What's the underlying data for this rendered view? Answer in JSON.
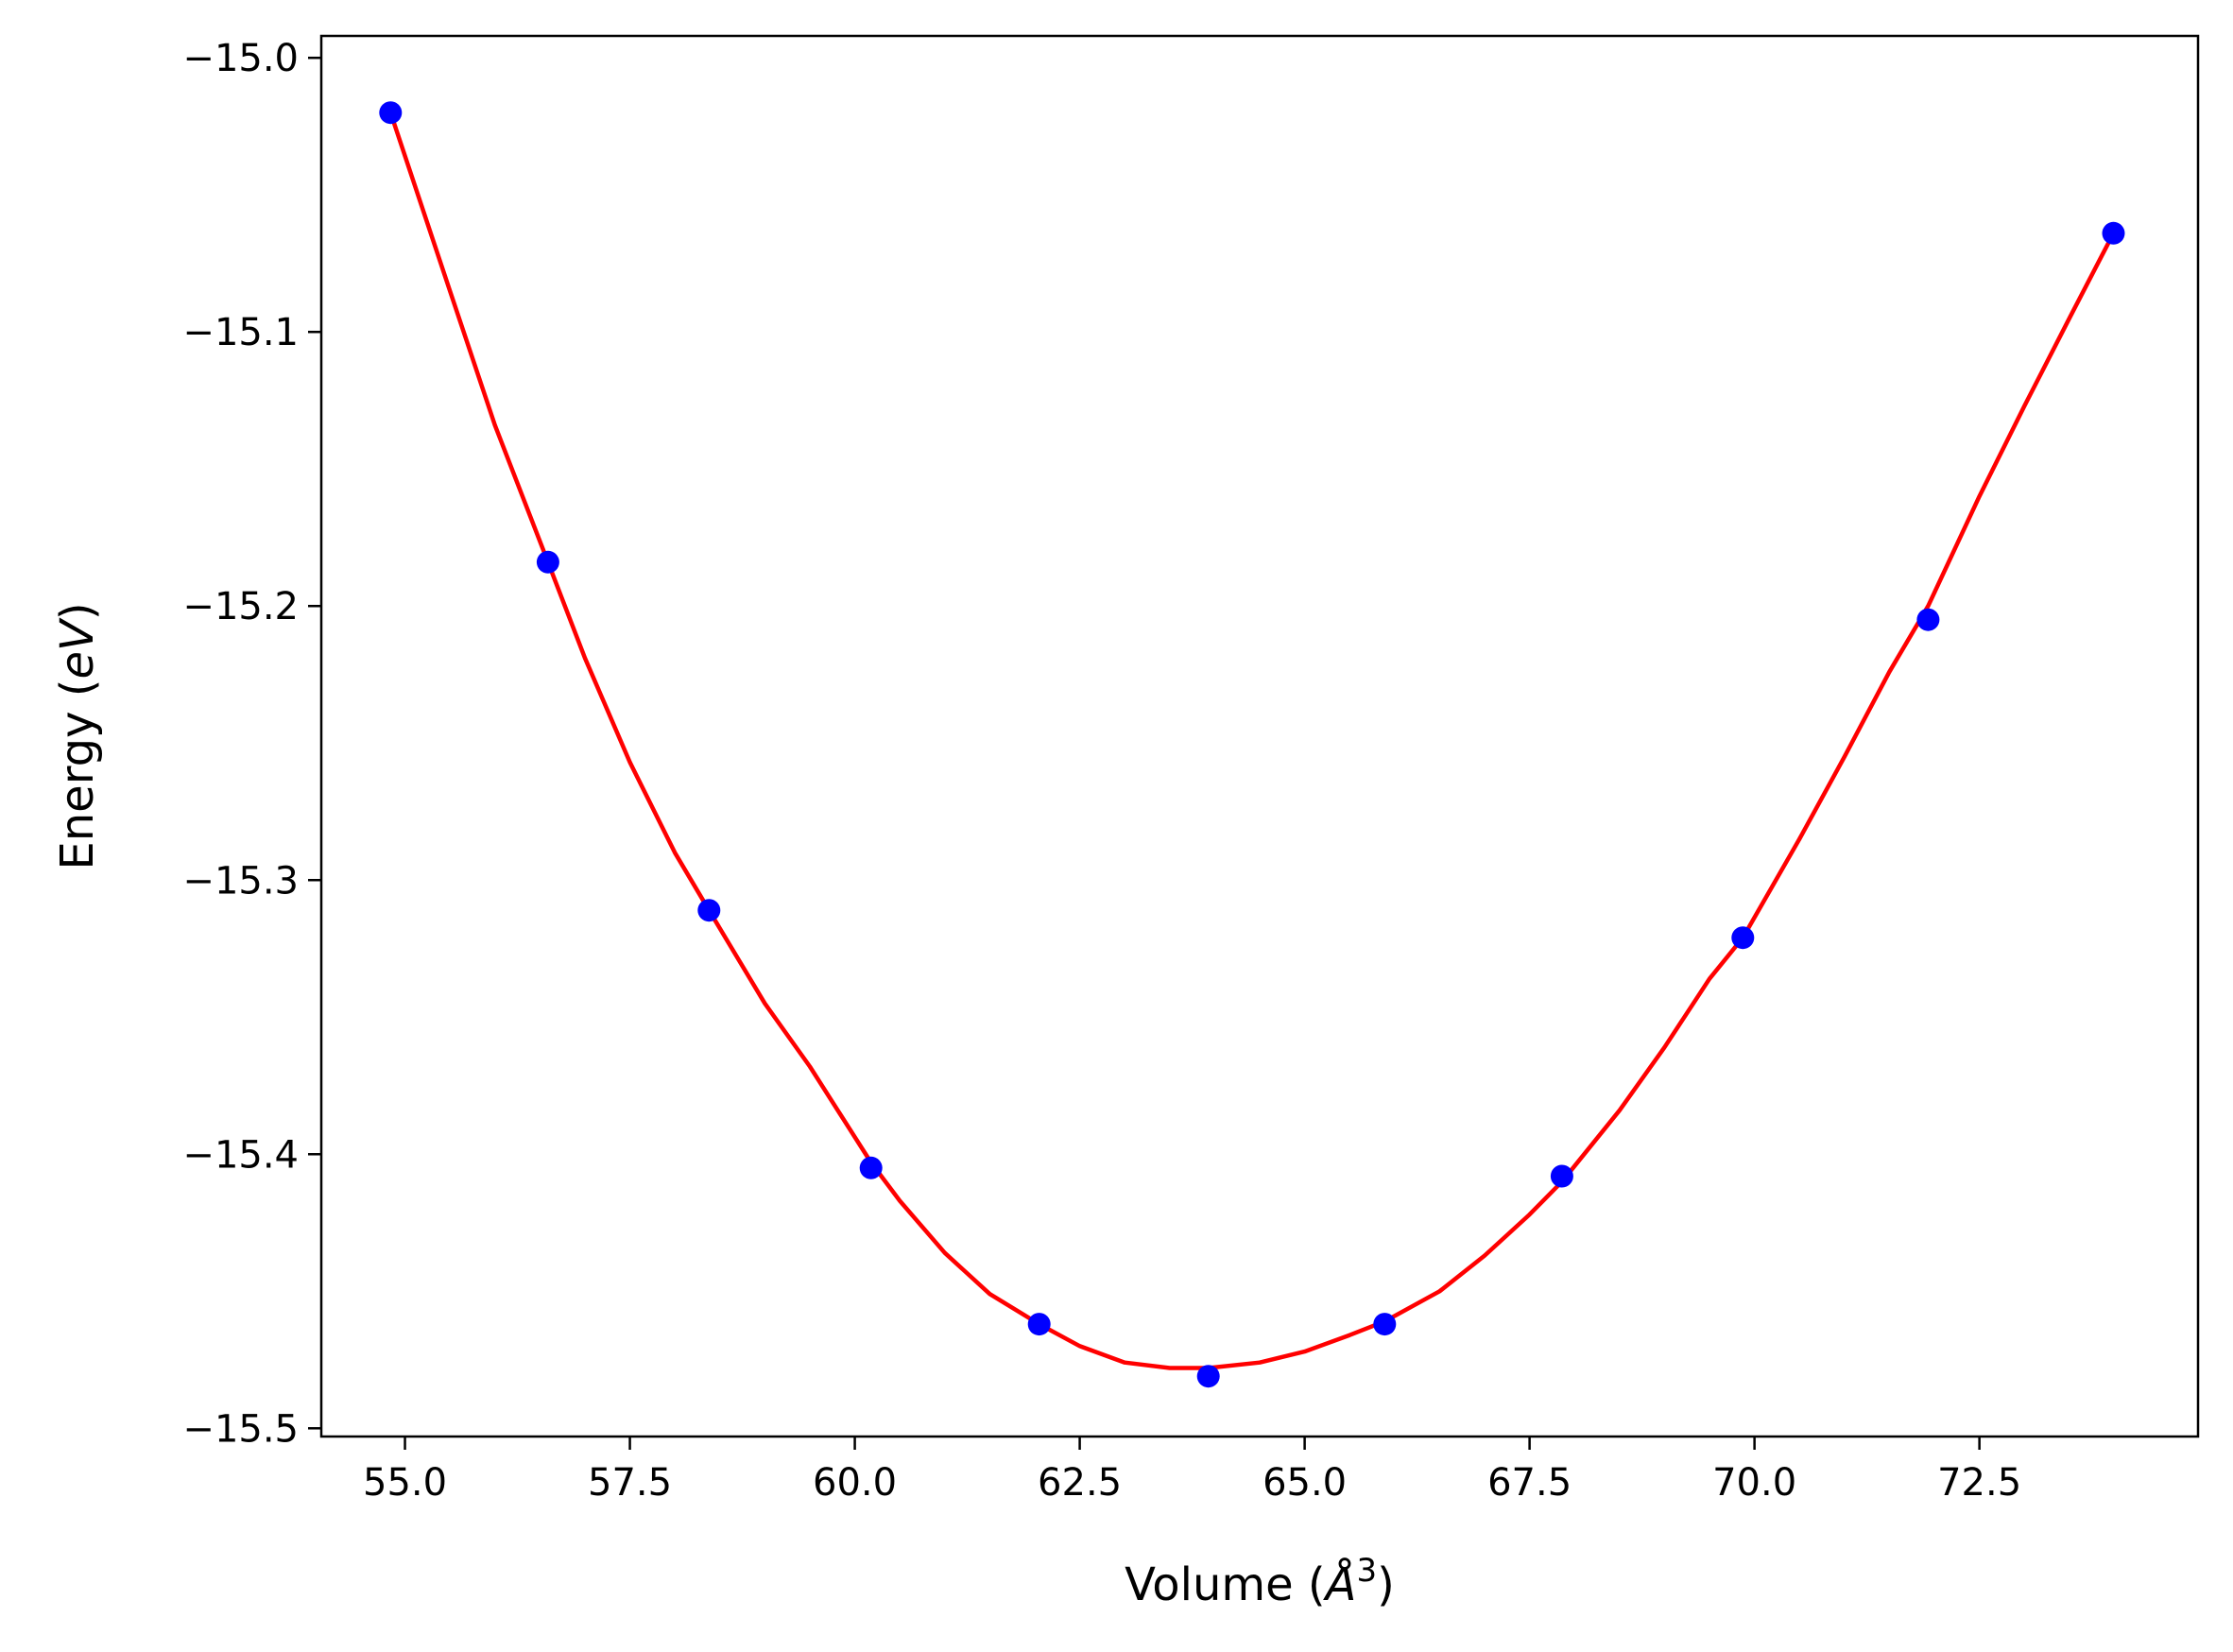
{
  "chart_data": {
    "type": "scatter",
    "title": "",
    "xlabel_parts": {
      "prefix": "Volume (",
      "symbol": "Å",
      "sup": "3",
      "suffix": ")"
    },
    "ylabel_parts": {
      "prefix": "Energy (",
      "italic": "eV",
      "suffix": ")"
    },
    "xlim": [
      54.07,
      74.93
    ],
    "ylim": [
      -15.503,
      -14.992
    ],
    "x_ticks": [
      55.0,
      57.5,
      60.0,
      62.5,
      65.0,
      67.5,
      70.0,
      72.5
    ],
    "x_tick_labels": [
      "55.0",
      "57.5",
      "60.0",
      "62.5",
      "65.0",
      "67.5",
      "70.0",
      "72.5"
    ],
    "y_ticks": [
      -15.0,
      -15.1,
      -15.2,
      -15.3,
      -15.4,
      -15.5
    ],
    "y_tick_labels": [
      "−15.0",
      "−15.1",
      "−15.2",
      "−15.3",
      "−15.4",
      "−15.5"
    ],
    "grid": false,
    "series": [
      {
        "kind": "points",
        "color": "#0000ff",
        "x": [
          54.84,
          56.59,
          58.38,
          60.18,
          62.05,
          63.93,
          65.89,
          67.86,
          69.87,
          71.93,
          73.99
        ],
        "y": [
          -15.02,
          -15.184,
          -15.311,
          -15.405,
          -15.462,
          -15.481,
          -15.462,
          -15.408,
          -15.321,
          -15.205,
          -15.064
        ]
      },
      {
        "kind": "fit_line",
        "color": "#ff0000",
        "x": [
          54.84,
          55.5,
          56.0,
          56.59,
          57.0,
          57.5,
          58.0,
          58.38,
          59.0,
          59.5,
          60.18,
          60.5,
          61.0,
          61.5,
          62.05,
          62.5,
          63.0,
          63.5,
          63.93,
          64.5,
          65.0,
          65.5,
          65.89,
          66.5,
          67.0,
          67.5,
          67.86,
          68.5,
          69.0,
          69.5,
          69.87,
          70.5,
          71.0,
          71.5,
          71.93,
          72.5,
          73.0,
          73.5,
          73.99
        ],
        "y": [
          -15.02,
          -15.085,
          -15.134,
          -15.184,
          -15.219,
          -15.257,
          -15.29,
          -15.311,
          -15.345,
          -15.368,
          -15.403,
          -15.417,
          -15.436,
          -15.451,
          -15.462,
          -15.47,
          -15.476,
          -15.478,
          -15.478,
          -15.476,
          -15.472,
          -15.466,
          -15.461,
          -15.45,
          -15.437,
          -15.422,
          -15.41,
          -15.384,
          -15.361,
          -15.336,
          -15.321,
          -15.285,
          -15.255,
          -15.224,
          -15.2,
          -15.16,
          -15.127,
          -15.095,
          -15.064
        ]
      }
    ]
  }
}
